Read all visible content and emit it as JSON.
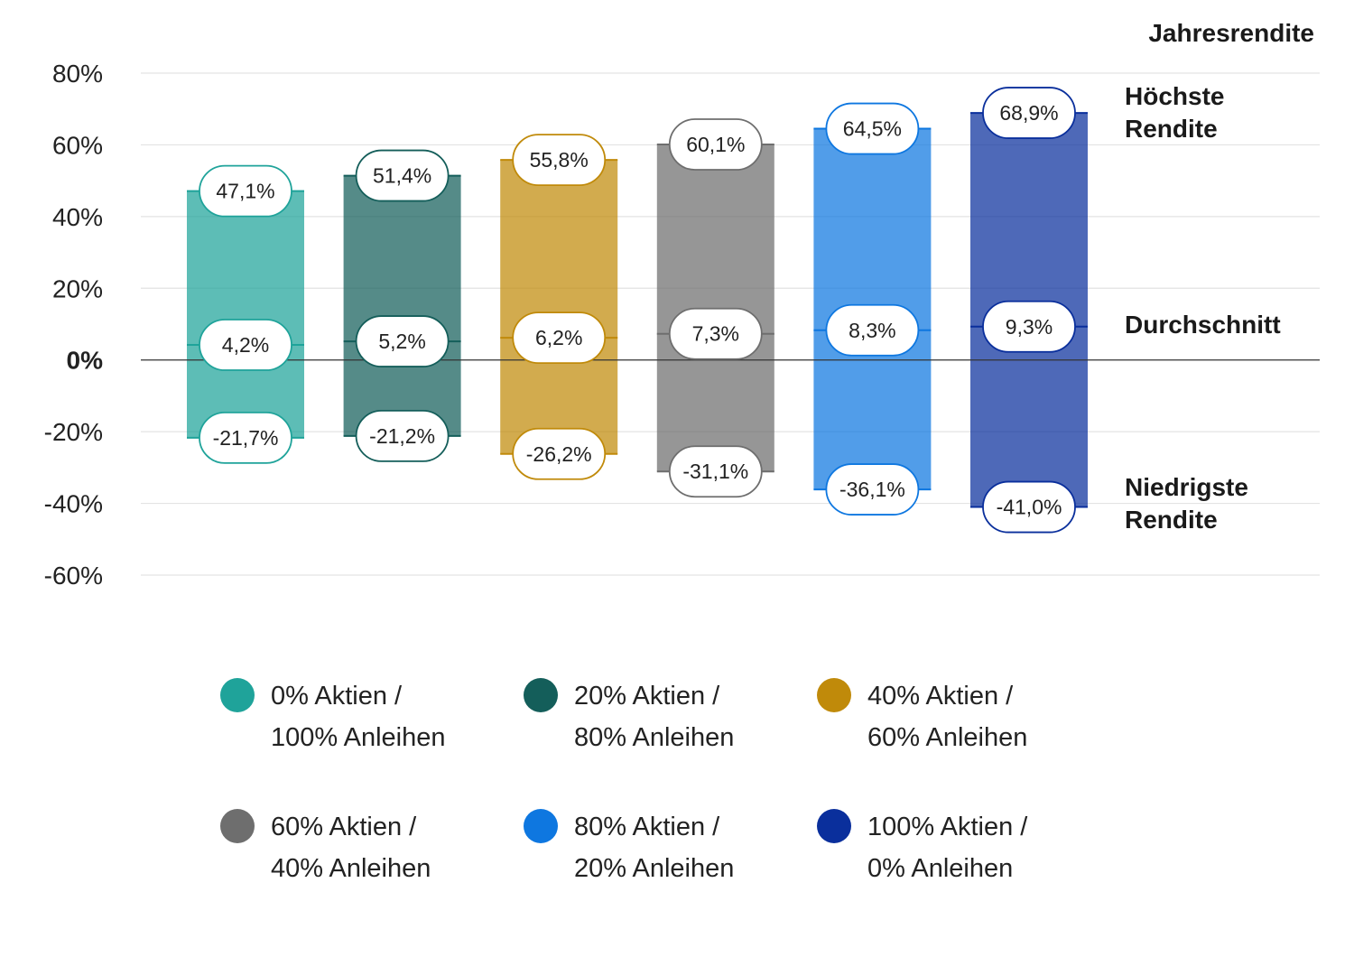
{
  "chart_data": {
    "type": "range-bar",
    "title": "",
    "header_label": "Jahresrendite",
    "side_labels": {
      "max": [
        "Höchste",
        "Rendite"
      ],
      "avg": [
        "Durchschnitt"
      ],
      "min": [
        "Niedrigste",
        "Rendite"
      ]
    },
    "y_axis": {
      "ylim": [
        -60,
        80
      ],
      "ticks": [
        80,
        60,
        40,
        20,
        0,
        -20,
        -40,
        -60
      ],
      "tick_labels": [
        "80%",
        "60%",
        "40%",
        "20%",
        "0%",
        "-20%",
        "-40%",
        "-60%"
      ]
    },
    "series": [
      {
        "name_line1": "0% Aktien /",
        "name_line2": "100% Anleihen",
        "color": "#1FA39A",
        "max": 47.1,
        "avg": 4.2,
        "min": -21.7,
        "max_label": "47,1%",
        "avg_label": "4,2%",
        "min_label": "-21,7%"
      },
      {
        "name_line1": "20% Aktien /",
        "name_line2": "80% Anleihen",
        "color": "#145E5A",
        "max": 51.4,
        "avg": 5.2,
        "min": -21.2,
        "max_label": "51,4%",
        "avg_label": "5,2%",
        "min_label": "-21,2%"
      },
      {
        "name_line1": "40% Aktien /",
        "name_line2": "60% Anleihen",
        "color": "#C08A0A",
        "max": 55.8,
        "avg": 6.2,
        "min": -26.2,
        "max_label": "55,8%",
        "avg_label": "6,2%",
        "min_label": "-26,2%"
      },
      {
        "name_line1": "60% Aktien /",
        "name_line2": "40% Anleihen",
        "color": "#6E6E6E",
        "max": 60.1,
        "avg": 7.3,
        "min": -31.1,
        "max_label": "60,1%",
        "avg_label": "7,3%",
        "min_label": "-31,1%"
      },
      {
        "name_line1": "80% Aktien /",
        "name_line2": "20% Anleihen",
        "color": "#0E77E0",
        "max": 64.5,
        "avg": 8.3,
        "min": -36.1,
        "max_label": "64,5%",
        "avg_label": "8,3%",
        "min_label": "-36,1%"
      },
      {
        "name_line1": "100% Aktien /",
        "name_line2": "0% Anleihen",
        "color": "#0A2F9C",
        "max": 68.9,
        "avg": 9.3,
        "min": -41.0,
        "max_label": "68,9%",
        "avg_label": "9,3%",
        "min_label": "-41,0%"
      }
    ]
  }
}
